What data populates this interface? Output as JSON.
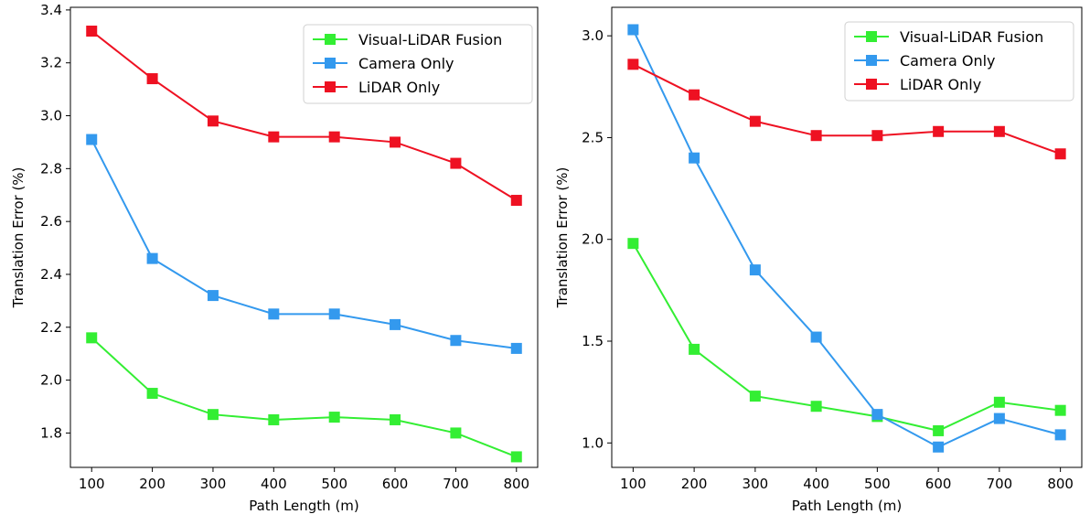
{
  "chart_data": [
    {
      "type": "line",
      "x": [
        100,
        200,
        300,
        400,
        500,
        600,
        700,
        800
      ],
      "xlabel": "Path Length (m)",
      "ylabel": "Translation Error (%)",
      "xticks": [
        "100",
        "200",
        "300",
        "400",
        "500",
        "600",
        "700",
        "800"
      ],
      "yticks": [
        "1.8",
        "2.0",
        "2.2",
        "2.4",
        "2.6",
        "2.8",
        "3.0",
        "3.2",
        "3.4"
      ],
      "ylim": [
        1.67,
        3.41
      ],
      "xlim": [
        65,
        835
      ],
      "grid": false,
      "legend_position": "top-right",
      "series": [
        {
          "name": "Visual-LiDAR Fusion",
          "color": "#33ee33",
          "marker": "square",
          "values": [
            2.16,
            1.95,
            1.87,
            1.85,
            1.86,
            1.85,
            1.8,
            1.71
          ]
        },
        {
          "name": "Camera Only",
          "color": "#3399ee",
          "marker": "square",
          "values": [
            2.91,
            2.46,
            2.32,
            2.25,
            2.25,
            2.21,
            2.15,
            2.12
          ]
        },
        {
          "name": "LiDAR Only",
          "color": "#ee1122",
          "marker": "square",
          "values": [
            3.32,
            3.14,
            2.98,
            2.92,
            2.92,
            2.9,
            2.82,
            2.68
          ]
        }
      ]
    },
    {
      "type": "line",
      "x": [
        100,
        200,
        300,
        400,
        500,
        600,
        700,
        800
      ],
      "xlabel": "Path Length (m)",
      "ylabel": "Translation Error (%)",
      "xticks": [
        "100",
        "200",
        "300",
        "400",
        "500",
        "600",
        "700",
        "800"
      ],
      "yticks": [
        "1.0",
        "1.5",
        "2.0",
        "2.5",
        "3.0"
      ],
      "ylim": [
        0.88,
        3.14
      ],
      "xlim": [
        65,
        835
      ],
      "grid": false,
      "legend_position": "top-right",
      "series": [
        {
          "name": "Visual-LiDAR Fusion",
          "color": "#33ee33",
          "marker": "square",
          "values": [
            1.98,
            1.46,
            1.23,
            1.18,
            1.13,
            1.06,
            1.2,
            1.16
          ]
        },
        {
          "name": "Camera Only",
          "color": "#3399ee",
          "marker": "square",
          "values": [
            3.03,
            2.4,
            1.85,
            1.52,
            1.14,
            0.98,
            1.12,
            1.04
          ]
        },
        {
          "name": "LiDAR Only",
          "color": "#ee1122",
          "marker": "square",
          "values": [
            2.86,
            2.71,
            2.58,
            2.51,
            2.51,
            2.53,
            2.53,
            2.42
          ]
        }
      ]
    }
  ]
}
